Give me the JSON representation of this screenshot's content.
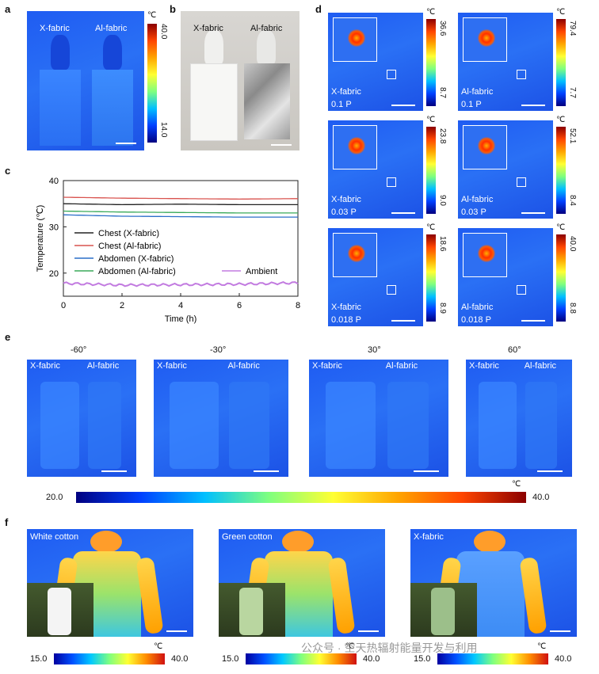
{
  "panels": {
    "a": "a",
    "b": "b",
    "c": "c",
    "d": "d",
    "e": "e",
    "f": "f"
  },
  "unit": "℃",
  "panel_a": {
    "left_label": "X-fabric",
    "right_label": "Al-fabric",
    "cbar_max": "40.0",
    "cbar_min": "14.0"
  },
  "panel_b": {
    "left_label": "X-fabric",
    "right_label": "Al-fabric"
  },
  "panel_d": {
    "rows": [
      {
        "left": {
          "name": "X-fabric",
          "power": "0.1 P",
          "max": "36.6",
          "min": "8.7"
        },
        "right": {
          "name": "Al-fabric",
          "power": "0.1 P",
          "max": "79.4",
          "min": "7.7"
        }
      },
      {
        "left": {
          "name": "X-fabric",
          "power": "0.03 P",
          "max": "23.8",
          "min": "9.0"
        },
        "right": {
          "name": "Al-fabric",
          "power": "0.03 P",
          "max": "52.1",
          "min": "8.4"
        }
      },
      {
        "left": {
          "name": "X-fabric",
          "power": "0.018 P",
          "max": "18.6",
          "min": "8.9"
        },
        "right": {
          "name": "Al-fabric",
          "power": "0.018 P",
          "max": "40.0",
          "min": "8.8"
        }
      }
    ]
  },
  "panel_e": {
    "angles": [
      "-60°",
      "-30°",
      "30°",
      "60°"
    ],
    "left_label": "X-fabric",
    "right_label": "Al-fabric",
    "cbar_min": "20.0",
    "cbar_max": "40.0"
  },
  "panel_f": {
    "labels": [
      "White cotton",
      "Green cotton",
      "X-fabric"
    ],
    "cbar_min": "15.0",
    "cbar_max": "40.0"
  },
  "watermark": "公众号 · 空天热辐射能量开发与利用",
  "chart_data": {
    "type": "line",
    "xlabel": "Time (h)",
    "ylabel": "Temperature (℃)",
    "xlim": [
      0,
      8
    ],
    "ylim": [
      15,
      40
    ],
    "xticks": [
      0,
      2,
      4,
      6,
      8
    ],
    "yticks": [
      20,
      30,
      40
    ],
    "legend_position": "left-center",
    "series": [
      {
        "name": "Chest (X-fabric)",
        "color": "#222222",
        "x": [
          0,
          2,
          4,
          6,
          8
        ],
        "values": [
          35.0,
          34.8,
          34.9,
          34.8,
          34.8
        ]
      },
      {
        "name": "Chest (Al-fabric)",
        "color": "#d9534f",
        "x": [
          0,
          2,
          4,
          6,
          8
        ],
        "values": [
          36.4,
          36.2,
          36.1,
          36.0,
          36.1
        ]
      },
      {
        "name": "Abdomen (X-fabric)",
        "color": "#2a6fc9",
        "x": [
          0,
          2,
          4,
          6,
          8
        ],
        "values": [
          32.6,
          32.3,
          32.2,
          32.1,
          32.1
        ]
      },
      {
        "name": "Abdomen (Al-fabric)",
        "color": "#3aaa5a",
        "x": [
          0,
          2,
          4,
          6,
          8
        ],
        "values": [
          33.4,
          33.2,
          33.1,
          33.0,
          33.0
        ]
      },
      {
        "name": "Ambient",
        "color": "#c27be0",
        "x": [
          0,
          2,
          4,
          6,
          8
        ],
        "values": [
          17.8,
          17.4,
          17.5,
          17.6,
          17.9
        ]
      }
    ]
  }
}
